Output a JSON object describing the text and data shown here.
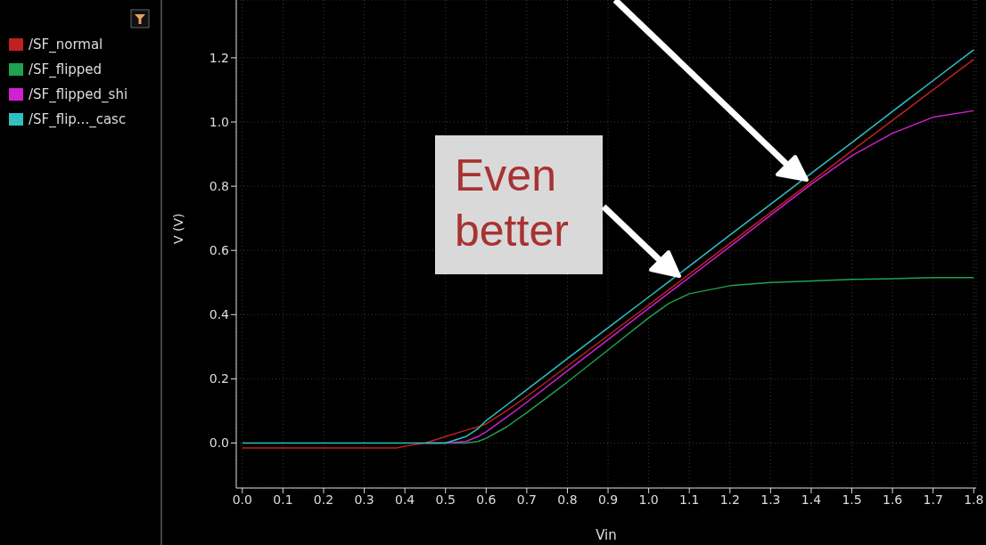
{
  "chart_data": {
    "type": "line",
    "xlabel": "Vin",
    "ylabel": "V (V)",
    "x": [
      0,
      0.38,
      0.4,
      0.45,
      0.5,
      0.55,
      0.58,
      0.6,
      0.65,
      0.7,
      0.8,
      0.9,
      1.0,
      1.05,
      1.1,
      1.2,
      1.3,
      1.4,
      1.5,
      1.6,
      1.7,
      1.8
    ],
    "series": [
      {
        "name": "/SF_normal",
        "color": "#c02020",
        "values": [
          -0.015,
          -0.015,
          -0.01,
          0,
          0.02,
          0.04,
          0.05,
          0.06,
          0.1,
          0.145,
          0.24,
          0.335,
          0.43,
          0.478,
          0.526,
          0.622,
          0.718,
          0.814,
          0.91,
          1.005,
          1.1,
          1.195
        ]
      },
      {
        "name": "/SF_flipped",
        "color": "#20a050",
        "values": [
          null,
          null,
          null,
          0,
          0,
          0,
          0.005,
          0.015,
          0.05,
          0.095,
          0.19,
          0.29,
          0.39,
          0.435,
          0.465,
          0.49,
          0.5,
          0.505,
          0.51,
          0.512,
          0.515,
          0.515
        ]
      },
      {
        "name": "/SF_flipped_shi",
        "color": "#d020d0",
        "values": [
          null,
          null,
          null,
          0,
          0,
          0.005,
          0.02,
          0.035,
          0.08,
          0.127,
          0.225,
          0.322,
          0.42,
          0.468,
          0.516,
          0.612,
          0.71,
          0.806,
          0.895,
          0.965,
          1.015,
          1.035
        ]
      },
      {
        "name": "/SF_flip..._casc",
        "color": "#30c0c0",
        "values": [
          0,
          0,
          0,
          0,
          0,
          0.02,
          0.045,
          0.07,
          0.118,
          0.166,
          0.263,
          0.359,
          0.455,
          0.503,
          0.551,
          0.648,
          0.744,
          0.84,
          0.936,
          1.033,
          1.129,
          1.225
        ]
      }
    ],
    "xlim": [
      -0.015,
      1.806
    ],
    "ylim": [
      -0.14,
      1.38
    ],
    "xticks": [
      {
        "value": 0,
        "label": "0.0"
      },
      0.1,
      0.2,
      0.3,
      0.4,
      0.5,
      0.6,
      0.7,
      0.8,
      0.9,
      {
        "value": 1,
        "label": "1.0"
      },
      1.1,
      1.2,
      1.3,
      1.4,
      1.5,
      1.6,
      1.7,
      1.8
    ],
    "yticks": [
      {
        "value": 0,
        "label": "0.0"
      },
      0.2,
      0.4,
      0.6,
      0.8,
      {
        "value": 1,
        "label": "1.0"
      },
      1.2
    ],
    "grid": true,
    "legend": "left",
    "marker": "none",
    "line_style": "solid",
    "annotations": [
      "Even better"
    ]
  }
}
